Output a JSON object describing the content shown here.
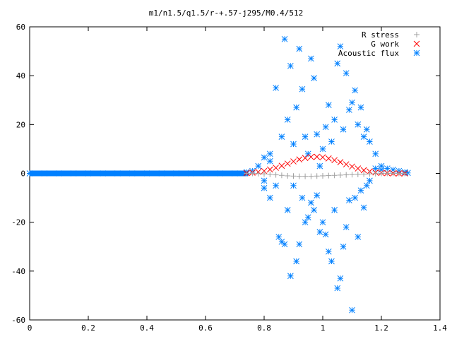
{
  "chart_data": {
    "type": "scatter",
    "title": "m1/n1.5/q1.5/r-+.57-j295/M0.4/512",
    "xlabel": "",
    "ylabel": "",
    "xlim": [
      0,
      1.4
    ],
    "ylim": [
      -60,
      60
    ],
    "x_ticks": [
      "0",
      "0.2",
      "0.4",
      "0.6",
      "0.8",
      "1",
      "1.2",
      "1.4"
    ],
    "y_ticks": [
      "60",
      "40",
      "20",
      "0",
      "-20",
      "-40",
      "-60"
    ],
    "legend_position": "top-right",
    "series": [
      {
        "name": "R stress",
        "marker": "plus",
        "color": "#a0a0a0",
        "points": [
          [
            0.74,
            0.0
          ],
          [
            0.76,
            0.0
          ],
          [
            0.78,
            -0.1
          ],
          [
            0.8,
            -0.2
          ],
          [
            0.82,
            -0.4
          ],
          [
            0.84,
            -0.6
          ],
          [
            0.86,
            -0.8
          ],
          [
            0.88,
            -1.0
          ],
          [
            0.9,
            -1.1
          ],
          [
            0.92,
            -1.2
          ],
          [
            0.94,
            -1.2
          ],
          [
            0.96,
            -1.2
          ],
          [
            0.98,
            -1.1
          ],
          [
            1.0,
            -1.0
          ],
          [
            1.02,
            -0.9
          ],
          [
            1.04,
            -0.8
          ],
          [
            1.06,
            -0.7
          ],
          [
            1.08,
            -0.6
          ],
          [
            1.1,
            -0.5
          ],
          [
            1.12,
            -0.4
          ],
          [
            1.14,
            -0.3
          ],
          [
            1.16,
            -0.2
          ],
          [
            1.18,
            -0.1
          ],
          [
            1.2,
            0.0
          ],
          [
            1.22,
            0.0
          ],
          [
            1.24,
            0.0
          ],
          [
            1.26,
            0.0
          ],
          [
            1.28,
            0.0
          ]
        ]
      },
      {
        "name": "G work",
        "marker": "cross",
        "color": "#ff0000",
        "points": [
          [
            0.74,
            0.1
          ],
          [
            0.76,
            0.3
          ],
          [
            0.78,
            0.6
          ],
          [
            0.8,
            1.0
          ],
          [
            0.82,
            1.6
          ],
          [
            0.84,
            2.3
          ],
          [
            0.86,
            3.1
          ],
          [
            0.88,
            4.0
          ],
          [
            0.9,
            4.9
          ],
          [
            0.92,
            5.7
          ],
          [
            0.94,
            6.3
          ],
          [
            0.96,
            6.7
          ],
          [
            0.98,
            6.8
          ],
          [
            1.0,
            6.6
          ],
          [
            1.02,
            6.1
          ],
          [
            1.04,
            5.4
          ],
          [
            1.06,
            4.6
          ],
          [
            1.08,
            3.7
          ],
          [
            1.1,
            2.8
          ],
          [
            1.12,
            2.0
          ],
          [
            1.14,
            1.3
          ],
          [
            1.16,
            0.8
          ],
          [
            1.18,
            0.4
          ],
          [
            1.2,
            0.2
          ],
          [
            1.22,
            0.1
          ],
          [
            1.24,
            0.0
          ],
          [
            1.26,
            0.0
          ],
          [
            1.28,
            0.0
          ]
        ]
      },
      {
        "name": "Acoustic flux",
        "marker": "star",
        "color": "#0080ff",
        "points": [
          [
            0.0,
            0.0
          ],
          [
            0.05,
            0.0
          ],
          [
            0.1,
            0.0
          ],
          [
            0.15,
            0.0
          ],
          [
            0.2,
            0.0
          ],
          [
            0.25,
            0.0
          ],
          [
            0.3,
            0.0
          ],
          [
            0.35,
            0.0
          ],
          [
            0.4,
            0.0
          ],
          [
            0.45,
            0.0
          ],
          [
            0.5,
            0.0
          ],
          [
            0.55,
            0.0
          ],
          [
            0.6,
            0.0
          ],
          [
            0.65,
            0.0
          ],
          [
            0.7,
            0.0
          ],
          [
            0.74,
            0.5
          ],
          [
            0.76,
            1.0
          ],
          [
            0.78,
            3.0
          ],
          [
            0.8,
            -3.0
          ],
          [
            0.82,
            5.0
          ],
          [
            0.84,
            -5.0
          ],
          [
            0.8,
            6.5
          ],
          [
            0.8,
            -6.0
          ],
          [
            0.82,
            8.0
          ],
          [
            0.82,
            -10.0
          ],
          [
            0.84,
            35.0
          ],
          [
            0.85,
            -26.0
          ],
          [
            0.86,
            15.0
          ],
          [
            0.86,
            -28.0
          ],
          [
            0.87,
            55.0
          ],
          [
            0.87,
            -29.0
          ],
          [
            0.88,
            22.0
          ],
          [
            0.88,
            -15.0
          ],
          [
            0.89,
            -42.0
          ],
          [
            0.89,
            44.0
          ],
          [
            0.9,
            12.0
          ],
          [
            0.9,
            -5.0
          ],
          [
            0.91,
            27.0
          ],
          [
            0.91,
            -36.0
          ],
          [
            0.92,
            51.0
          ],
          [
            0.92,
            -29.0
          ],
          [
            0.93,
            34.5
          ],
          [
            0.93,
            -10.0
          ],
          [
            0.94,
            15.0
          ],
          [
            0.94,
            -20.0
          ],
          [
            0.95,
            8.0
          ],
          [
            0.95,
            -18.0
          ],
          [
            0.96,
            47.0
          ],
          [
            0.96,
            -12.0
          ],
          [
            0.97,
            39.0
          ],
          [
            0.97,
            -15.0
          ],
          [
            0.98,
            16.0
          ],
          [
            0.98,
            -9.0
          ],
          [
            0.99,
            3.0
          ],
          [
            0.99,
            -24.0
          ],
          [
            1.0,
            10.0
          ],
          [
            1.0,
            -20.0
          ],
          [
            1.01,
            19.0
          ],
          [
            1.01,
            -25.0
          ],
          [
            1.02,
            28.0
          ],
          [
            1.02,
            -32.0
          ],
          [
            1.03,
            13.0
          ],
          [
            1.03,
            -36.0
          ],
          [
            1.04,
            22.0
          ],
          [
            1.04,
            -15.0
          ],
          [
            1.05,
            45.0
          ],
          [
            1.05,
            -47.0
          ],
          [
            1.06,
            52.0
          ],
          [
            1.06,
            -43.0
          ],
          [
            1.07,
            18.0
          ],
          [
            1.07,
            -30.0
          ],
          [
            1.08,
            41.0
          ],
          [
            1.08,
            -22.0
          ],
          [
            1.09,
            26.0
          ],
          [
            1.09,
            -11.0
          ],
          [
            1.1,
            29.0
          ],
          [
            1.1,
            -56.0
          ],
          [
            1.11,
            34.0
          ],
          [
            1.11,
            -10.0
          ],
          [
            1.12,
            20.0
          ],
          [
            1.12,
            -26.0
          ],
          [
            1.13,
            27.0
          ],
          [
            1.13,
            -7.0
          ],
          [
            1.14,
            15.0
          ],
          [
            1.14,
            -14.0
          ],
          [
            1.15,
            18.0
          ],
          [
            1.15,
            -5.0
          ],
          [
            1.16,
            13.0
          ],
          [
            1.16,
            -3.0
          ],
          [
            1.18,
            8.0
          ],
          [
            1.18,
            2.0
          ],
          [
            1.2,
            3.0
          ],
          [
            1.2,
            1.5
          ],
          [
            1.22,
            2.0
          ],
          [
            1.24,
            1.5
          ],
          [
            1.26,
            1.0
          ],
          [
            1.28,
            0.5
          ],
          [
            1.29,
            0.2
          ]
        ]
      }
    ]
  }
}
